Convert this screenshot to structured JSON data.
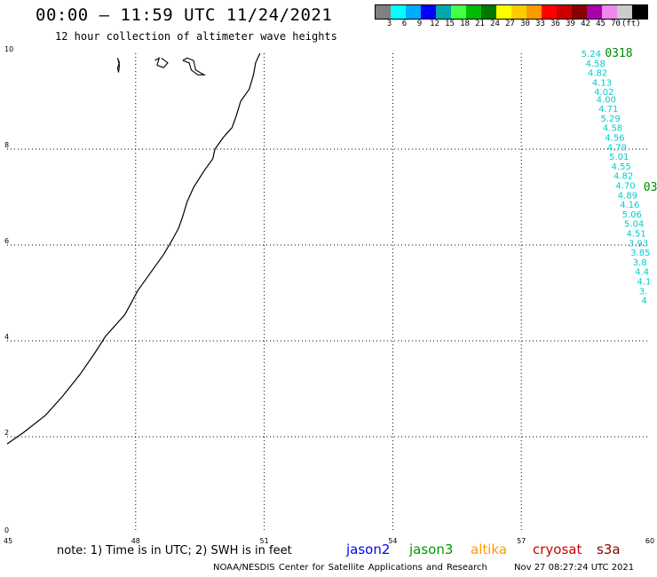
{
  "header": {
    "title": "00:00 – 11:59 UTC 11/24/2021",
    "subtitle": "12 hour collection of altimeter wave heights"
  },
  "legend": {
    "colors": [
      "#808080",
      "#00ffff",
      "#00aaff",
      "#0000ff",
      "#00aaaa",
      "#44ff44",
      "#00bb00",
      "#007700",
      "#ffff00",
      "#ffcc00",
      "#ff9900",
      "#ff0000",
      "#cc0000",
      "#880000",
      "#aa00aa",
      "#ee88ee",
      "#cccccc",
      "#000000"
    ],
    "labels": [
      "3",
      "6",
      "9",
      "12",
      "15",
      "18",
      "21",
      "24",
      "27",
      "30",
      "33",
      "36",
      "39",
      "42",
      "45",
      "70"
    ],
    "unit": "(ft)"
  },
  "map": {
    "lon_range": [
      45,
      60
    ],
    "lat_range": [
      0,
      10
    ],
    "x_ticks": [
      "45",
      "48",
      "51",
      "54",
      "57",
      "60"
    ],
    "y_ticks": [
      "0",
      "2",
      "4",
      "6",
      "8",
      "10"
    ],
    "coastline": [
      [
        45.0,
        1.85
      ],
      [
        45.4,
        2.1
      ],
      [
        45.9,
        2.45
      ],
      [
        46.3,
        2.85
      ],
      [
        46.7,
        3.3
      ],
      [
        47.05,
        3.75
      ],
      [
        47.3,
        4.1
      ],
      [
        47.55,
        4.35
      ],
      [
        47.75,
        4.55
      ],
      [
        47.9,
        4.8
      ],
      [
        48.05,
        5.05
      ],
      [
        48.25,
        5.3
      ],
      [
        48.45,
        5.55
      ],
      [
        48.65,
        5.8
      ],
      [
        48.85,
        6.1
      ],
      [
        49.0,
        6.35
      ],
      [
        49.1,
        6.6
      ],
      [
        49.2,
        6.9
      ],
      [
        49.35,
        7.2
      ],
      [
        49.6,
        7.55
      ],
      [
        49.8,
        7.8
      ],
      [
        49.85,
        8.0
      ],
      [
        50.05,
        8.25
      ],
      [
        50.25,
        8.45
      ],
      [
        50.35,
        8.7
      ],
      [
        50.45,
        9.0
      ],
      [
        50.65,
        9.25
      ],
      [
        50.75,
        9.55
      ],
      [
        50.8,
        9.8
      ],
      [
        50.9,
        10.0
      ]
    ],
    "islands": [
      [
        [
          47.6,
          9.6
        ],
        [
          47.58,
          9.7
        ],
        [
          47.62,
          9.8
        ],
        [
          47.58,
          9.9
        ],
        [
          47.62,
          9.75
        ],
        [
          47.6,
          9.6
        ]
      ],
      [
        [
          48.45,
          9.85
        ],
        [
          48.55,
          9.9
        ],
        [
          48.5,
          9.75
        ],
        [
          48.65,
          9.7
        ],
        [
          48.75,
          9.8
        ],
        [
          48.6,
          9.9
        ]
      ],
      [
        [
          49.1,
          9.85
        ],
        [
          49.25,
          9.8
        ],
        [
          49.3,
          9.65
        ],
        [
          49.45,
          9.55
        ],
        [
          49.6,
          9.55
        ],
        [
          49.4,
          9.65
        ],
        [
          49.35,
          9.85
        ],
        [
          49.2,
          9.9
        ],
        [
          49.1,
          9.85
        ]
      ]
    ],
    "grid": "dotted"
  },
  "track": {
    "time_labels": [
      {
        "text": "0318",
        "lon": 58.95,
        "lat": 10.0,
        "color": "#008800"
      },
      {
        "text": "03",
        "lon": 59.85,
        "lat": 7.2,
        "color": "#008800"
      }
    ],
    "color": "#00cccc",
    "points": [
      {
        "v": "5.24",
        "lon": 58.4,
        "lat": 10.0
      },
      {
        "v": "4.58",
        "lon": 58.5,
        "lat": 9.8
      },
      {
        "v": "4.82",
        "lon": 58.55,
        "lat": 9.6
      },
      {
        "v": "4.13",
        "lon": 58.65,
        "lat": 9.4
      },
      {
        "v": "4.02",
        "lon": 58.7,
        "lat": 9.2
      },
      {
        "v": "4.00",
        "lon": 58.75,
        "lat": 9.05
      },
      {
        "v": "4.71",
        "lon": 58.8,
        "lat": 8.85
      },
      {
        "v": "5.29",
        "lon": 58.85,
        "lat": 8.65
      },
      {
        "v": "4.58",
        "lon": 58.9,
        "lat": 8.45
      },
      {
        "v": "4.56",
        "lon": 58.95,
        "lat": 8.25
      },
      {
        "v": "4.79",
        "lon": 59.0,
        "lat": 8.05
      },
      {
        "v": "5.01",
        "lon": 59.05,
        "lat": 7.85
      },
      {
        "v": "4.55",
        "lon": 59.1,
        "lat": 7.65
      },
      {
        "v": "4.82",
        "lon": 59.15,
        "lat": 7.45
      },
      {
        "v": "4.70",
        "lon": 59.2,
        "lat": 7.25
      },
      {
        "v": "4.89",
        "lon": 59.25,
        "lat": 7.05
      },
      {
        "v": "4.16",
        "lon": 59.3,
        "lat": 6.85
      },
      {
        "v": "5.06",
        "lon": 59.35,
        "lat": 6.65
      },
      {
        "v": "5.04",
        "lon": 59.4,
        "lat": 6.45
      },
      {
        "v": "4.51",
        "lon": 59.45,
        "lat": 6.25
      },
      {
        "v": "3.93",
        "lon": 59.5,
        "lat": 6.05
      },
      {
        "v": "3.85",
        "lon": 59.55,
        "lat": 5.85
      },
      {
        "v": "3.8",
        "lon": 59.6,
        "lat": 5.65
      },
      {
        "v": "4.4",
        "lon": 59.65,
        "lat": 5.45
      },
      {
        "v": "4.1",
        "lon": 59.7,
        "lat": 5.25
      },
      {
        "v": "3.",
        "lon": 59.75,
        "lat": 5.05
      },
      {
        "v": "4",
        "lon": 59.8,
        "lat": 4.85
      }
    ]
  },
  "footer": {
    "note": "note: 1) Time is in UTC; 2) SWH is in feet",
    "satellites": [
      {
        "name": "jason2",
        "color": "#0000ff"
      },
      {
        "name": "jason3",
        "color": "#009900"
      },
      {
        "name": "altika",
        "color": "#ff9900"
      },
      {
        "name": "cryosat",
        "color": "#cc0000"
      },
      {
        "name": "s3a",
        "color": "#880000"
      }
    ],
    "credit": "NOAA/NESDIS Center for Satellite Applications and Research",
    "timestamp": "Nov 27 08:27:24 UTC 2021"
  }
}
